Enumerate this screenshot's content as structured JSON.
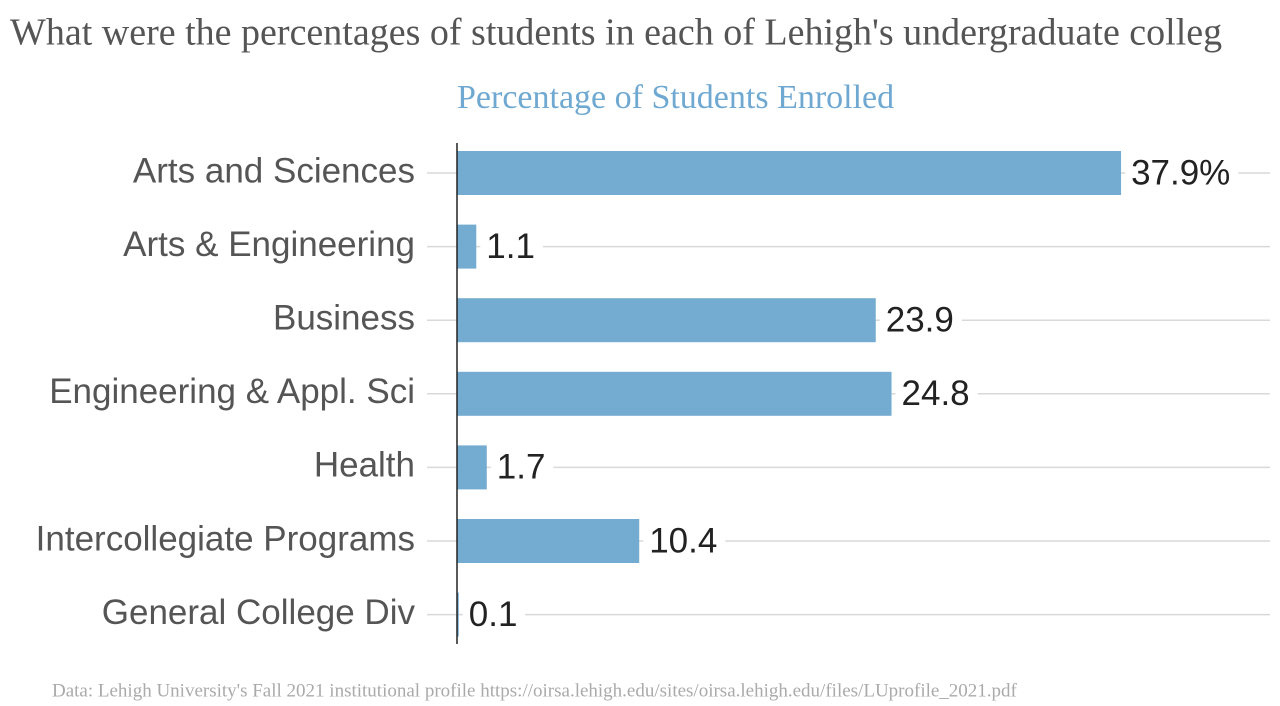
{
  "chart_data": {
    "type": "bar",
    "orientation": "horizontal",
    "title": "What were the percentages of students in each of Lehigh's undergraduate colleg",
    "subtitle": "Percentage of Students Enrolled",
    "source": "Data: Lehigh University's Fall 2021 institutional profile https://oirsa.lehigh.edu/sites/oirsa.lehigh.edu/files/LUprofile_2021.pdf",
    "categories": [
      "Arts and Sciences",
      "Arts & Engineering",
      "Business",
      "Engineering & Appl. Sci",
      "Health",
      "Intercollegiate Programs",
      "General College Div"
    ],
    "values": [
      37.9,
      1.1,
      23.9,
      24.8,
      1.7,
      10.4,
      0.1
    ],
    "value_labels": [
      "37.9%",
      "1.1",
      "23.9",
      "24.8",
      "1.7",
      "10.4",
      "0.1"
    ],
    "color": "#74acd1",
    "xlim": [
      0,
      46.4
    ]
  }
}
